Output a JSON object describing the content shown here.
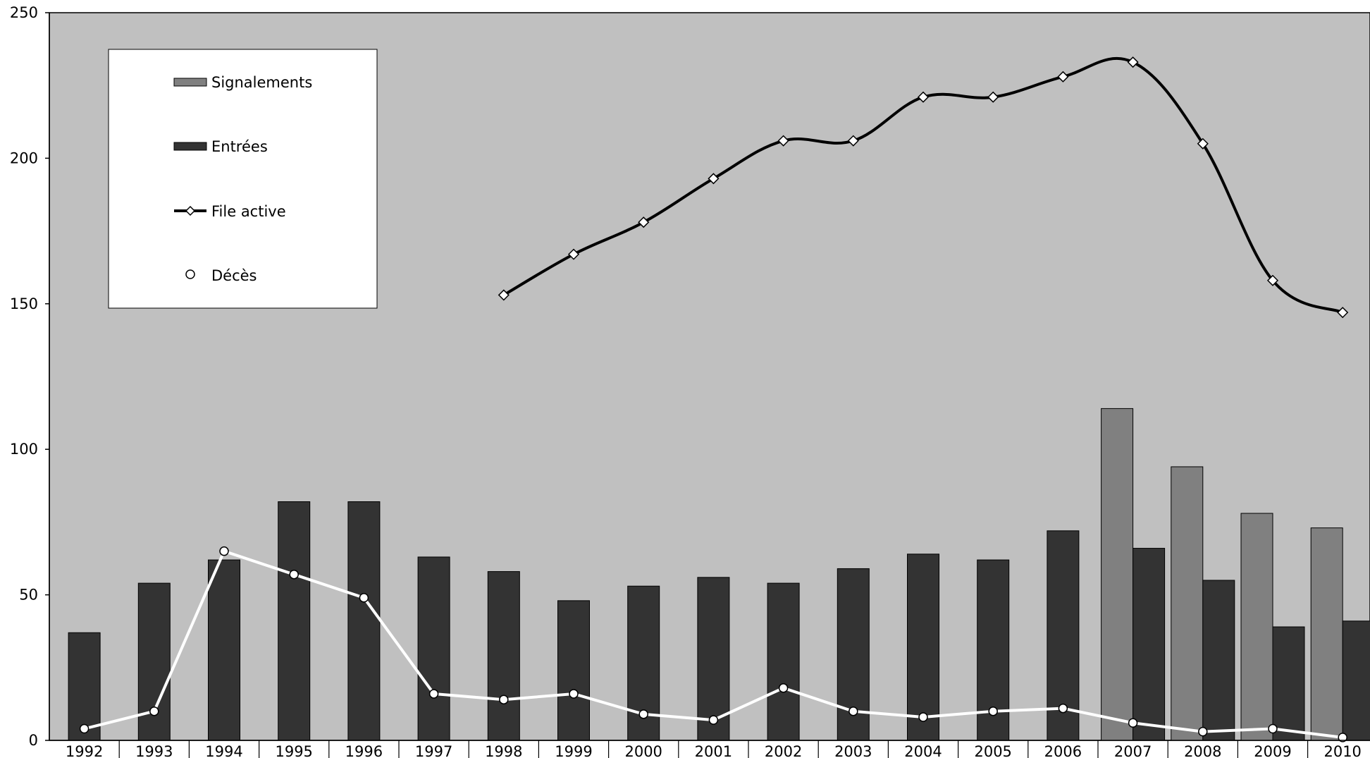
{
  "chart_data": {
    "type": "bar",
    "categories": [
      "1992",
      "1993",
      "1994",
      "1995",
      "1996",
      "1997",
      "1998",
      "1999",
      "2000",
      "2001",
      "2002",
      "2003",
      "2004",
      "2005",
      "2006",
      "2007",
      "2008",
      "2009",
      "2010"
    ],
    "ylim": [
      0,
      250
    ],
    "yticks": [
      "0",
      "50",
      "100",
      "150",
      "200",
      "250"
    ],
    "grid": false,
    "legend_position": "top-left",
    "series": [
      {
        "name": "Signalements",
        "type": "bar",
        "color": "#808080",
        "values": [
          null,
          null,
          null,
          null,
          null,
          null,
          null,
          null,
          null,
          null,
          null,
          null,
          null,
          null,
          null,
          114,
          94,
          78,
          73
        ]
      },
      {
        "name": "Entrées",
        "type": "bar",
        "color": "#333333",
        "values": [
          37,
          54,
          62,
          82,
          82,
          63,
          58,
          48,
          53,
          56,
          54,
          59,
          64,
          62,
          72,
          66,
          55,
          39,
          41
        ]
      },
      {
        "name": "File active",
        "type": "line",
        "color": "#000000",
        "marker": "diamond",
        "values": [
          null,
          null,
          null,
          null,
          null,
          null,
          153,
          167,
          178,
          193,
          206,
          206,
          221,
          221,
          228,
          233,
          205,
          158,
          147
        ]
      },
      {
        "name": "Décès",
        "type": "line",
        "color": "#ffffff",
        "marker": "circle",
        "values": [
          4,
          10,
          65,
          57,
          49,
          16,
          14,
          16,
          9,
          7,
          18,
          10,
          8,
          10,
          11,
          6,
          3,
          4,
          1
        ]
      }
    ]
  }
}
